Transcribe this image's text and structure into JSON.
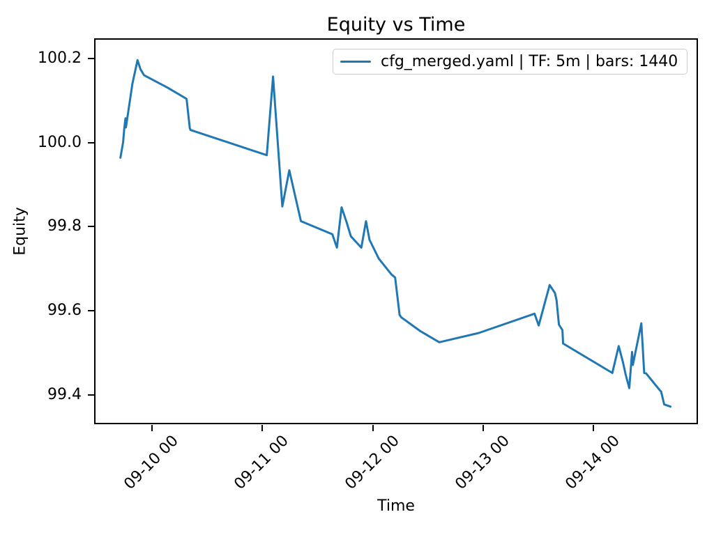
{
  "figure": {
    "background_color": "#ffffff",
    "text_color": "#000000"
  },
  "chart_data": {
    "type": "line",
    "title": "Equity vs Time",
    "xlabel": "Time",
    "ylabel": "Equity",
    "legend": [
      "cfg_merged.yaml | TF: 5m | bars: 1440"
    ],
    "legend_location": "upper right",
    "legend_fields": {
      "config_file": "cfg_merged.yaml",
      "timeframe": "5m",
      "bars": 1440
    },
    "line_color": "#1f77b4",
    "grid": "off",
    "x_unit": "days relative to 09-10 00:00",
    "xlim": [
      -0.524,
      4.947
    ],
    "ylim": [
      99.33,
      100.248
    ],
    "x_ticks": [
      {
        "value": 0,
        "label": "09-10 00"
      },
      {
        "value": 1,
        "label": "09-11 00"
      },
      {
        "value": 2,
        "label": "09-12 00"
      },
      {
        "value": 3,
        "label": "09-13 00"
      },
      {
        "value": 4,
        "label": "09-14 00"
      }
    ],
    "y_ticks": [
      {
        "value": 99.4,
        "label": "99.4"
      },
      {
        "value": 99.6,
        "label": "99.6"
      },
      {
        "value": 99.8,
        "label": "99.8"
      },
      {
        "value": 100.0,
        "label": "100.0"
      },
      {
        "value": 100.2,
        "label": "100.2"
      }
    ],
    "series": [
      {
        "name": "cfg_merged.yaml | TF: 5m | bars: 1440",
        "points": [
          [
            -0.286,
            99.964
          ],
          [
            -0.261,
            100.001
          ],
          [
            -0.251,
            100.033
          ],
          [
            -0.24,
            100.058
          ],
          [
            -0.236,
            100.036
          ],
          [
            -0.177,
            100.14
          ],
          [
            -0.131,
            100.196
          ],
          [
            -0.103,
            100.174
          ],
          [
            -0.071,
            100.16
          ],
          [
            0.139,
            100.131
          ],
          [
            0.314,
            100.104
          ],
          [
            0.343,
            100.034
          ],
          [
            0.349,
            100.03
          ],
          [
            1.04,
            99.97
          ],
          [
            1.097,
            100.157
          ],
          [
            1.181,
            99.848
          ],
          [
            1.244,
            99.934
          ],
          [
            1.35,
            99.813
          ],
          [
            1.634,
            99.782
          ],
          [
            1.676,
            99.75
          ],
          [
            1.718,
            99.846
          ],
          [
            1.764,
            99.81
          ],
          [
            1.802,
            99.777
          ],
          [
            1.897,
            99.75
          ],
          [
            1.939,
            99.813
          ],
          [
            1.971,
            99.769
          ],
          [
            2.055,
            99.724
          ],
          [
            2.171,
            99.686
          ],
          [
            2.203,
            99.679
          ],
          [
            2.244,
            99.59
          ],
          [
            2.26,
            99.584
          ],
          [
            2.434,
            99.551
          ],
          [
            2.603,
            99.525
          ],
          [
            2.961,
            99.547
          ],
          [
            3.466,
            99.593
          ],
          [
            3.504,
            99.565
          ],
          [
            3.603,
            99.661
          ],
          [
            3.651,
            99.642
          ],
          [
            3.666,
            99.625
          ],
          [
            3.687,
            99.567
          ],
          [
            3.719,
            99.554
          ],
          [
            3.725,
            99.522
          ],
          [
            4.171,
            99.452
          ],
          [
            4.229,
            99.516
          ],
          [
            4.266,
            99.479
          ],
          [
            4.291,
            99.449
          ],
          [
            4.325,
            99.416
          ],
          [
            4.35,
            99.502
          ],
          [
            4.357,
            99.471
          ],
          [
            4.434,
            99.57
          ],
          [
            4.46,
            99.452
          ],
          [
            4.477,
            99.451
          ],
          [
            4.607,
            99.409
          ],
          [
            4.613,
            99.408
          ],
          [
            4.641,
            99.377
          ],
          [
            4.698,
            99.372
          ]
        ]
      }
    ]
  }
}
